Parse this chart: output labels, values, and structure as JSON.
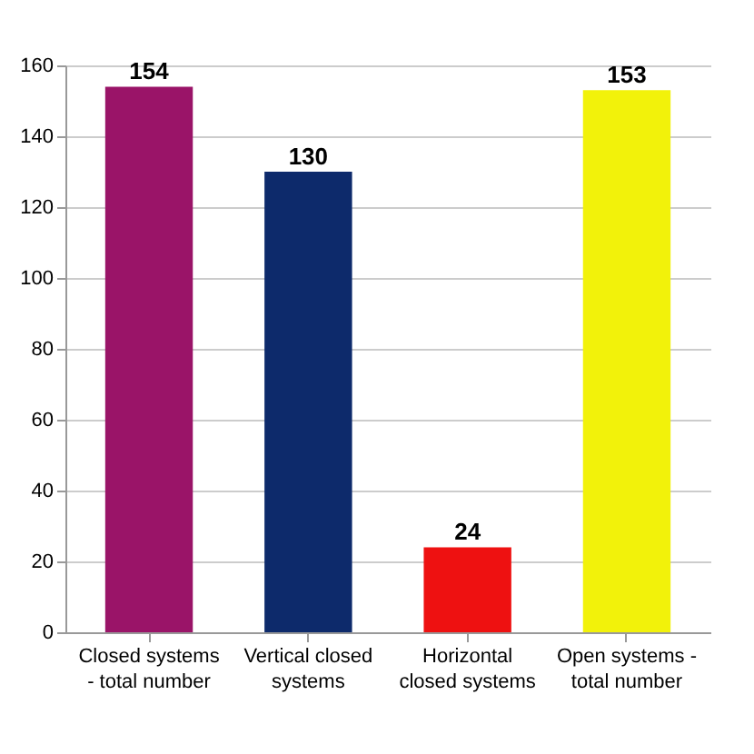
{
  "chart_data": {
    "type": "bar",
    "categories": [
      "Closed systems - total number",
      "Vertical closed systems",
      "Horizontal closed systems",
      "Open systems - total number"
    ],
    "values": [
      154,
      130,
      24,
      153
    ],
    "colors": [
      "#9a1468",
      "#0d2a6b",
      "#ee1111",
      "#f2f20a"
    ],
    "ylim": [
      0,
      160
    ],
    "yticks": [
      0,
      20,
      40,
      60,
      80,
      100,
      120,
      140,
      160
    ],
    "grid": "y",
    "data_labels": true
  }
}
